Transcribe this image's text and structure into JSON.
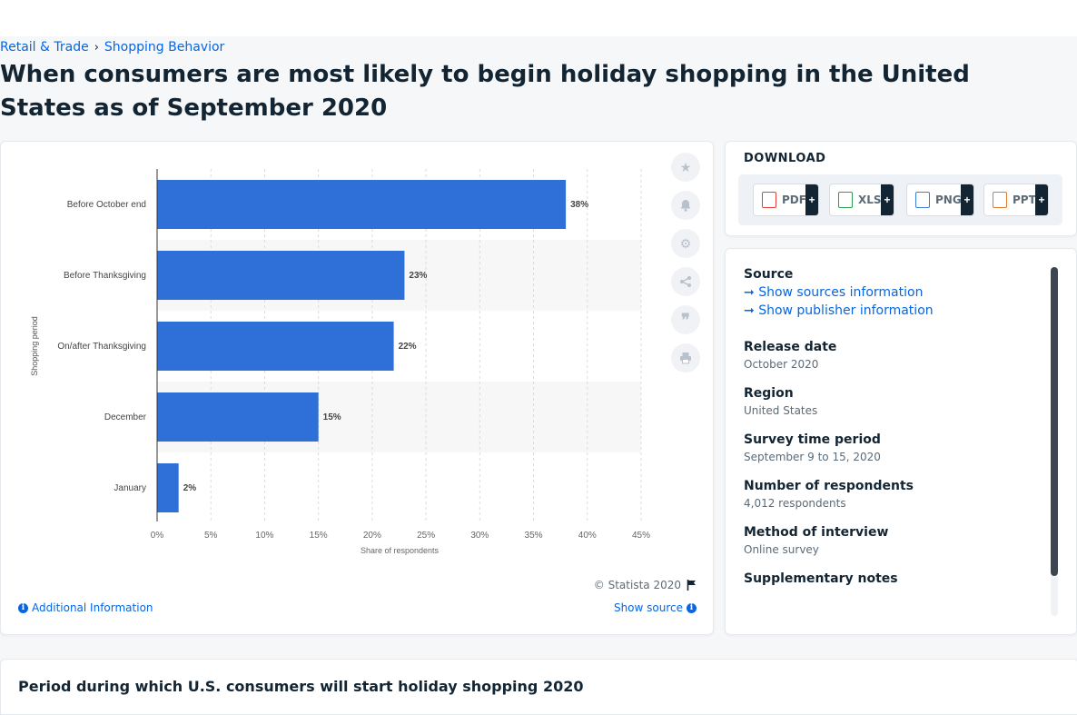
{
  "breadcrumb": {
    "parent": "Retail & Trade",
    "separator": "›",
    "current": "Shopping Behavior"
  },
  "title": "When consumers are most likely to begin holiday shopping in the United States as of September 2020",
  "chart_data": {
    "type": "bar",
    "orientation": "horizontal",
    "categories": [
      "Before October end",
      "Before Thanksgiving",
      "On/after Thanksgiving",
      "December",
      "January"
    ],
    "values": [
      38,
      23,
      22,
      15,
      2
    ],
    "value_labels": [
      "38%",
      "23%",
      "22%",
      "15%",
      "2%"
    ],
    "xlabel": "Share of respondents",
    "ylabel": "Shopping period",
    "xlim": [
      0,
      45
    ],
    "x_ticks": [
      "0%",
      "5%",
      "10%",
      "15%",
      "20%",
      "25%",
      "30%",
      "35%",
      "40%",
      "45%"
    ],
    "bar_color": "#2f6fd8",
    "grid": "vertical dashed",
    "alternate_row_shading": true
  },
  "chart_footer": {
    "copyright": "© Statista 2020",
    "additional_info": "Additional Information",
    "show_source": "Show source"
  },
  "tools": [
    {
      "name": "favorite",
      "icon": "star-icon"
    },
    {
      "name": "notification",
      "icon": "bell-icon"
    },
    {
      "name": "settings",
      "icon": "gear-icon"
    },
    {
      "name": "share",
      "icon": "share-icon"
    },
    {
      "name": "cite",
      "icon": "quote-icon"
    },
    {
      "name": "print",
      "icon": "print-icon"
    }
  ],
  "download": {
    "heading": "DOWNLOAD",
    "buttons": [
      {
        "label": "PDF",
        "plus": "+",
        "color": "#e0403a"
      },
      {
        "label": "XLS",
        "plus": "+",
        "color": "#2e9d4f"
      },
      {
        "label": "PNG",
        "plus": "+",
        "color": "#3b7fd6"
      },
      {
        "label": "PPT",
        "plus": "+",
        "color": "#e07a2e"
      }
    ]
  },
  "info": {
    "source_heading": "Source",
    "show_sources": "Show sources information",
    "show_publisher": "Show publisher information",
    "release_date_label": "Release date",
    "release_date": "October 2020",
    "region_label": "Region",
    "region": "United States",
    "survey_period_label": "Survey time period",
    "survey_period": "September 9 to 15, 2020",
    "respondents_label": "Number of respondents",
    "respondents": "4,012 respondents",
    "method_label": "Method of interview",
    "method": "Online survey",
    "supplementary_label": "Supplementary notes"
  },
  "bottom_title": "Period during which U.S. consumers will start holiday shopping 2020",
  "colors": {
    "link": "#0666e5",
    "text": "#132533",
    "muted": "#5b6b78"
  }
}
